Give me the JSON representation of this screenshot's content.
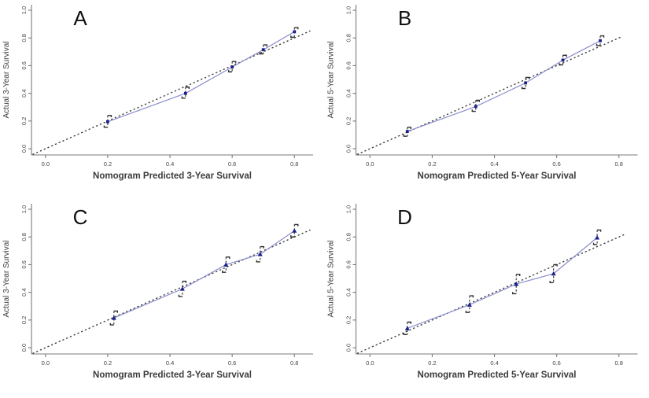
{
  "figure": {
    "description": "Nomogram calibration curves, four panels",
    "background": "#ffffff"
  },
  "colors": {
    "calibration_line": "#8a8ecd",
    "marker": "#1b1f8a",
    "error_bar": "#2e2e2e",
    "ideal_line": "#3a3a3a",
    "axis": "#7a7a7a",
    "tick_label": "#454545",
    "axis_label": "#3b3b3b",
    "panel_letter": "#111111"
  },
  "chart_data": [
    {
      "type": "line",
      "panel_label": "A",
      "title": "",
      "xlabel": "Nomogram Predicted 3-Year Survival",
      "ylabel": "Actual 3-Year Survival",
      "xlim": [
        -0.045,
        0.86
      ],
      "ylim": [
        -0.045,
        1.04
      ],
      "xticks": [
        0.0,
        0.2,
        0.4,
        0.6,
        0.8
      ],
      "yticks": [
        0.0,
        0.2,
        0.4,
        0.6,
        0.8,
        1.0
      ],
      "grid": false,
      "legend": "none",
      "marker": "square",
      "ideal_line": {
        "style": "dotted",
        "from": -0.04,
        "to": 0.85
      },
      "series": [
        {
          "name": "calibration",
          "x": [
            0.2,
            0.45,
            0.6,
            0.7,
            0.8
          ],
          "y": [
            0.195,
            0.4,
            0.59,
            0.715,
            0.845
          ],
          "y_lower": [
            0.155,
            0.365,
            0.555,
            0.685,
            0.805
          ],
          "y_upper": [
            0.24,
            0.445,
            0.63,
            0.75,
            0.875
          ]
        }
      ]
    },
    {
      "type": "line",
      "panel_label": "B",
      "title": "",
      "xlabel": "Nomogram Predicted 5-Year Survival",
      "ylabel": "Actual 5-Year Survival",
      "xlim": [
        -0.045,
        0.86
      ],
      "ylim": [
        -0.045,
        1.04
      ],
      "xticks": [
        0.0,
        0.2,
        0.4,
        0.6,
        0.8
      ],
      "yticks": [
        0.0,
        0.2,
        0.4,
        0.6,
        0.8,
        1.0
      ],
      "grid": false,
      "legend": "none",
      "marker": "square",
      "ideal_line": {
        "style": "dotted",
        "from": -0.04,
        "to": 0.81
      },
      "series": [
        {
          "name": "calibration",
          "x": [
            0.12,
            0.34,
            0.5,
            0.62,
            0.74
          ],
          "y": [
            0.125,
            0.305,
            0.475,
            0.64,
            0.78
          ],
          "y_lower": [
            0.09,
            0.27,
            0.435,
            0.605,
            0.745
          ],
          "y_upper": [
            0.155,
            0.35,
            0.515,
            0.675,
            0.815
          ]
        }
      ]
    },
    {
      "type": "line",
      "panel_label": "C",
      "title": "",
      "xlabel": "Nomogram Predicted 3-Year Survival",
      "ylabel": "Actual 3-Year Survival",
      "xlim": [
        -0.045,
        0.86
      ],
      "ylim": [
        -0.045,
        1.04
      ],
      "xticks": [
        0.0,
        0.2,
        0.4,
        0.6,
        0.8
      ],
      "yticks": [
        0.0,
        0.2,
        0.4,
        0.6,
        0.8,
        1.0
      ],
      "grid": false,
      "legend": "none",
      "marker": "triangle",
      "ideal_line": {
        "style": "dotted",
        "from": -0.04,
        "to": 0.85
      },
      "series": [
        {
          "name": "calibration",
          "x": [
            0.22,
            0.44,
            0.58,
            0.69,
            0.8
          ],
          "y": [
            0.215,
            0.425,
            0.6,
            0.675,
            0.845
          ],
          "y_lower": [
            0.165,
            0.37,
            0.545,
            0.62,
            0.8
          ],
          "y_upper": [
            0.265,
            0.48,
            0.655,
            0.73,
            0.89
          ]
        }
      ]
    },
    {
      "type": "line",
      "panel_label": "D",
      "title": "",
      "xlabel": "Nomogram Predicted 5-Year Survival",
      "ylabel": "Actual 5-Year Survival",
      "xlim": [
        -0.045,
        0.86
      ],
      "ylim": [
        -0.045,
        1.04
      ],
      "xticks": [
        0.0,
        0.2,
        0.4,
        0.6,
        0.8
      ],
      "yticks": [
        0.0,
        0.2,
        0.4,
        0.6,
        0.8,
        1.0
      ],
      "grid": false,
      "legend": "none",
      "marker": "triangle",
      "ideal_line": {
        "style": "dotted",
        "from": -0.04,
        "to": 0.82
      },
      "series": [
        {
          "name": "calibration",
          "x": [
            0.12,
            0.32,
            0.47,
            0.59,
            0.73
          ],
          "y": [
            0.14,
            0.31,
            0.46,
            0.535,
            0.795
          ],
          "y_lower": [
            0.095,
            0.255,
            0.39,
            0.47,
            0.745
          ],
          "y_upper": [
            0.185,
            0.375,
            0.53,
            0.6,
            0.85
          ]
        }
      ]
    }
  ]
}
